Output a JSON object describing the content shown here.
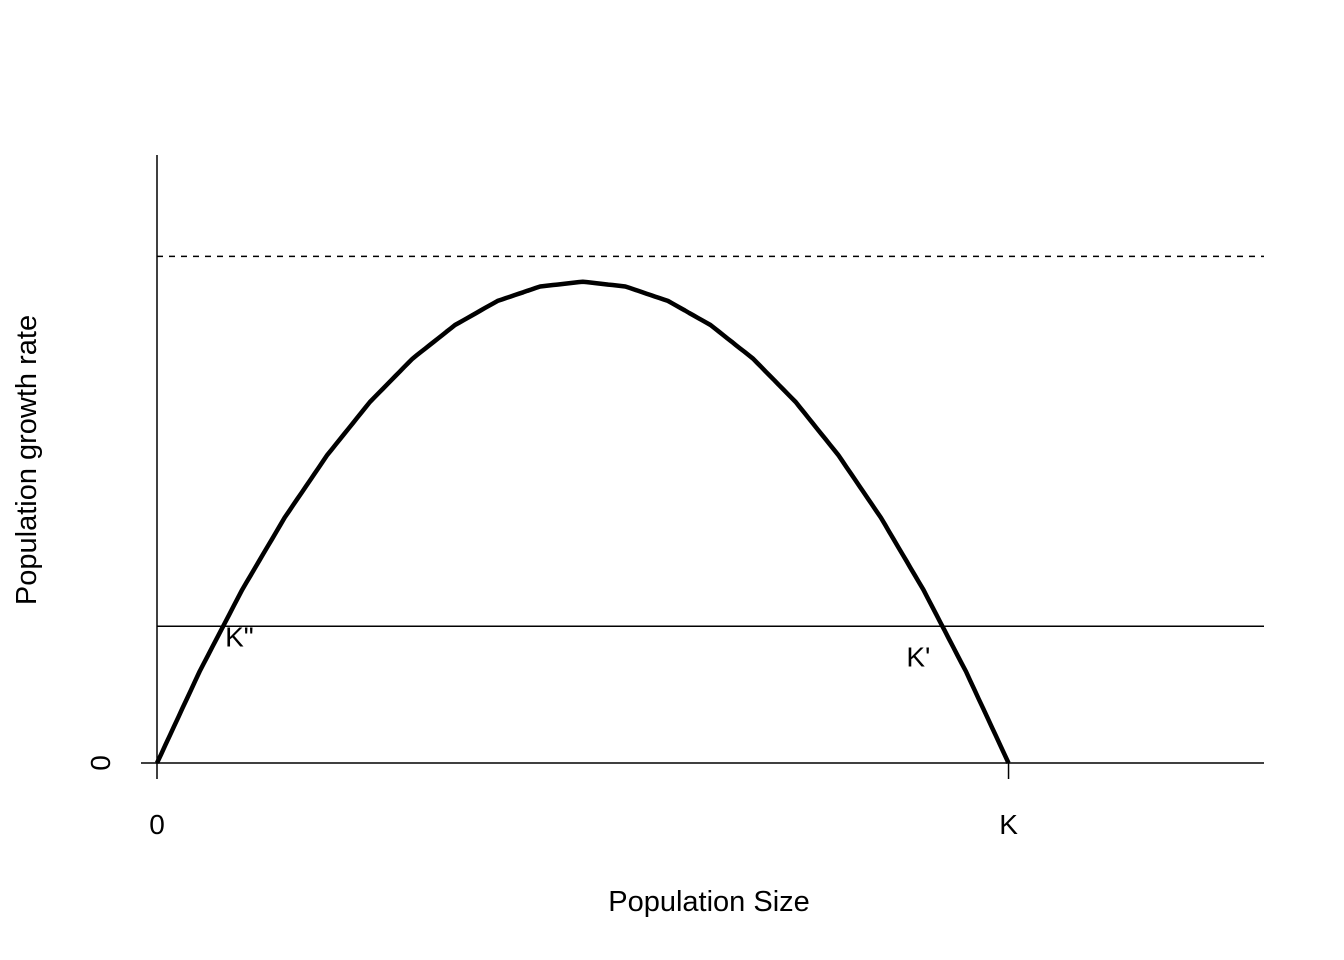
{
  "chart_data": {
    "type": "line",
    "title": "",
    "xlabel": "Population Size",
    "ylabel": "Population growth rate",
    "xlim": [
      0,
      1.3
    ],
    "ylim": [
      0,
      1.2
    ],
    "x_ticks": [
      {
        "value": 0,
        "label": "0"
      },
      {
        "value": 1,
        "label": "K"
      }
    ],
    "y_ticks": [
      {
        "value": 0,
        "label": "0"
      }
    ],
    "series": [
      {
        "x": [
          0,
          0.05,
          0.1,
          0.15,
          0.2,
          0.25,
          0.3,
          0.35,
          0.4,
          0.45,
          0.5,
          0.55,
          0.6,
          0.65,
          0.7,
          0.75,
          0.8,
          0.85,
          0.9,
          0.95,
          1.0
        ],
        "y": [
          0,
          0.1805,
          0.342,
          0.4845,
          0.608,
          0.7125,
          0.798,
          0.8645,
          0.912,
          0.9405,
          0.95,
          0.9405,
          0.912,
          0.8645,
          0.798,
          0.7125,
          0.608,
          0.4845,
          0.342,
          0.1805,
          0
        ]
      }
    ],
    "reference_lines": [
      {
        "orientation": "horizontal",
        "y": 1.0,
        "style": "dashed"
      },
      {
        "orientation": "horizontal",
        "y": 0.27,
        "style": "solid"
      },
      {
        "orientation": "horizontal",
        "y": 0,
        "style": "solid"
      }
    ],
    "annotations": [
      {
        "text": "K\"",
        "x": 0.08,
        "y": 0.23
      },
      {
        "text": "K'",
        "x": 0.88,
        "y": 0.19
      }
    ],
    "grid": false,
    "legend": "none"
  }
}
